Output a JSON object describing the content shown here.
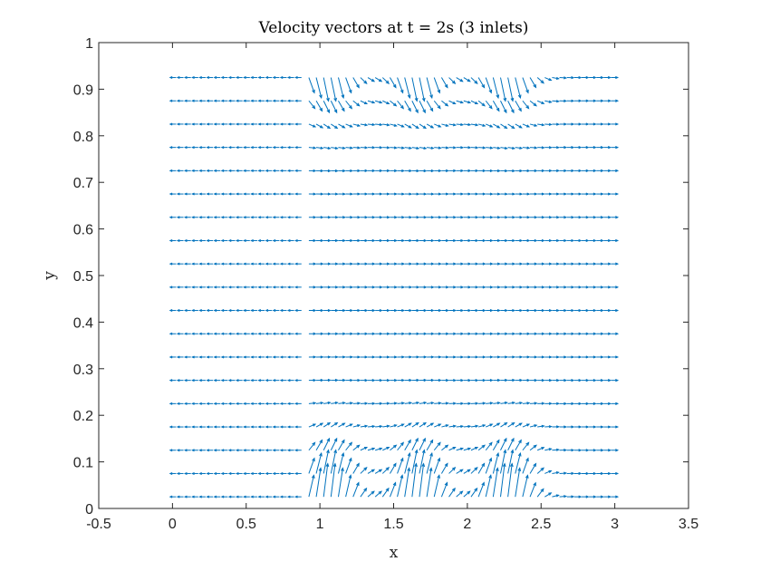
{
  "chart_data": {
    "type": "quiver",
    "title": "Velocity vectors at t = 2s (3 inlets)",
    "xlabel": "x",
    "ylabel": "y",
    "xlim": [
      -0.5,
      3.5
    ],
    "ylim": [
      0,
      1
    ],
    "xticks": [
      "-0.5",
      "0",
      "0.5",
      "1",
      "1.5",
      "2",
      "2.5",
      "3",
      "3.5"
    ],
    "yticks": [
      "0",
      "0.1",
      "0.2",
      "0.3",
      "0.4",
      "0.5",
      "0.6",
      "0.7",
      "0.8",
      "0.9",
      "1"
    ],
    "grid": false,
    "legend": "none",
    "arrow_color": "#0072BD",
    "axes_color": "#262626",
    "field": {
      "x_start": 0.025,
      "x_step": 0.05,
      "x_count": 60,
      "y_start": 0.025,
      "y_step": 0.05,
      "y_count": 19,
      "inlets": [
        {
          "x_from": 0.9,
          "x_to": 1.2
        },
        {
          "x_from": 1.5,
          "x_to": 1.8
        },
        {
          "x_from": 2.1,
          "x_to": 2.4
        }
      ],
      "base_speed": 0.05,
      "inlet_speed": 0.06
    }
  }
}
